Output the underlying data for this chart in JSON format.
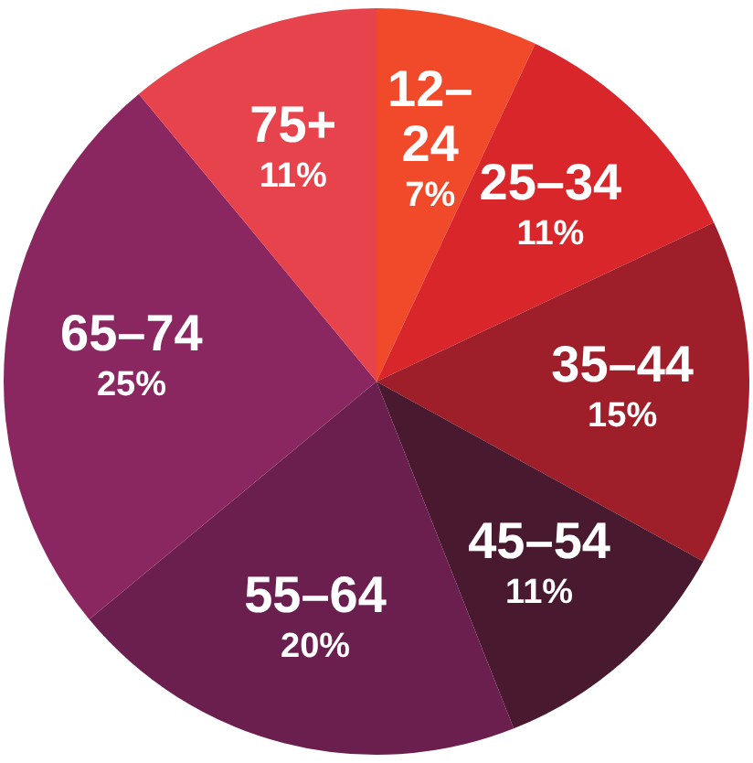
{
  "chart_data": {
    "type": "pie",
    "categories": [
      "12–24",
      "25–34",
      "35–44",
      "45–54",
      "55–64",
      "65–74",
      "75+"
    ],
    "values": [
      7,
      11,
      15,
      11,
      20,
      25,
      11
    ],
    "value_labels": [
      "7%",
      "11%",
      "15%",
      "11%",
      "20%",
      "25%",
      "11%"
    ],
    "colors": [
      "#f04a2a",
      "#d8262b",
      "#9e1e29",
      "#48192f",
      "#6b1f4f",
      "#8a2760",
      "#e6434c"
    ]
  }
}
